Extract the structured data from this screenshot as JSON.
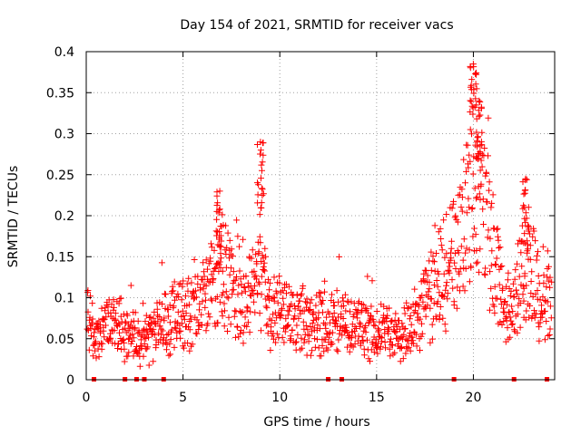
{
  "chart_data": {
    "type": "scatter",
    "title": "Day 154 of 2021, SRMTID for receiver vacs",
    "xlabel": "GPS time / hours",
    "ylabel": "SRMTID / TECUs",
    "xlim": [
      0,
      24.2
    ],
    "ylim": [
      0,
      0.4
    ],
    "x_ticks": [
      0,
      5,
      10,
      15,
      20
    ],
    "x_tick_labels": [
      "0",
      "5",
      "10",
      "15",
      "20"
    ],
    "y_ticks": [
      0,
      0.05,
      0.1,
      0.15,
      0.2,
      0.25,
      0.3,
      0.35,
      0.4
    ],
    "y_tick_labels": [
      "0",
      "0.05",
      "0.1",
      "0.15",
      "0.2",
      "0.25",
      "0.3",
      "0.35",
      "0.4"
    ],
    "grid": true,
    "marker": "+",
    "color": "#ff0000",
    "data_gaps_at_zero_hours": [
      0.4,
      2.0,
      2.6,
      3.0,
      4.0,
      12.5,
      13.2,
      19.0,
      22.1,
      23.8
    ],
    "series": [
      {
        "name": "SRMTID",
        "trend": {
          "x": [
            0,
            0.5,
            1,
            1.5,
            2,
            2.5,
            3,
            3.5,
            4,
            4.5,
            5,
            5.5,
            6,
            6.5,
            7,
            7.5,
            8,
            8.5,
            9,
            9.5,
            10,
            10.5,
            11,
            11.5,
            12,
            12.5,
            13,
            13.5,
            14,
            14.5,
            15,
            15.5,
            16,
            16.5,
            17,
            17.5,
            18,
            18.5,
            19,
            19.5,
            20,
            20.5,
            21,
            21.5,
            22,
            22.5,
            23,
            23.5,
            24
          ],
          "y": [
            0.08,
            0.05,
            0.065,
            0.07,
            0.06,
            0.05,
            0.045,
            0.06,
            0.065,
            0.075,
            0.085,
            0.08,
            0.095,
            0.11,
            0.13,
            0.11,
            0.09,
            0.1,
            0.12,
            0.08,
            0.08,
            0.075,
            0.07,
            0.075,
            0.07,
            0.065,
            0.07,
            0.07,
            0.065,
            0.06,
            0.055,
            0.06,
            0.05,
            0.055,
            0.07,
            0.09,
            0.11,
            0.13,
            0.15,
            0.18,
            0.26,
            0.2,
            0.16,
            0.09,
            0.08,
            0.12,
            0.14,
            0.09,
            0.11
          ]
        },
        "peaks": [
          {
            "x": 6.9,
            "y": 0.23
          },
          {
            "x": 9.0,
            "y": 0.29
          },
          {
            "x": 20.0,
            "y": 0.385
          },
          {
            "x": 20.3,
            "y": 0.34
          },
          {
            "x": 22.7,
            "y": 0.245
          }
        ]
      }
    ]
  }
}
